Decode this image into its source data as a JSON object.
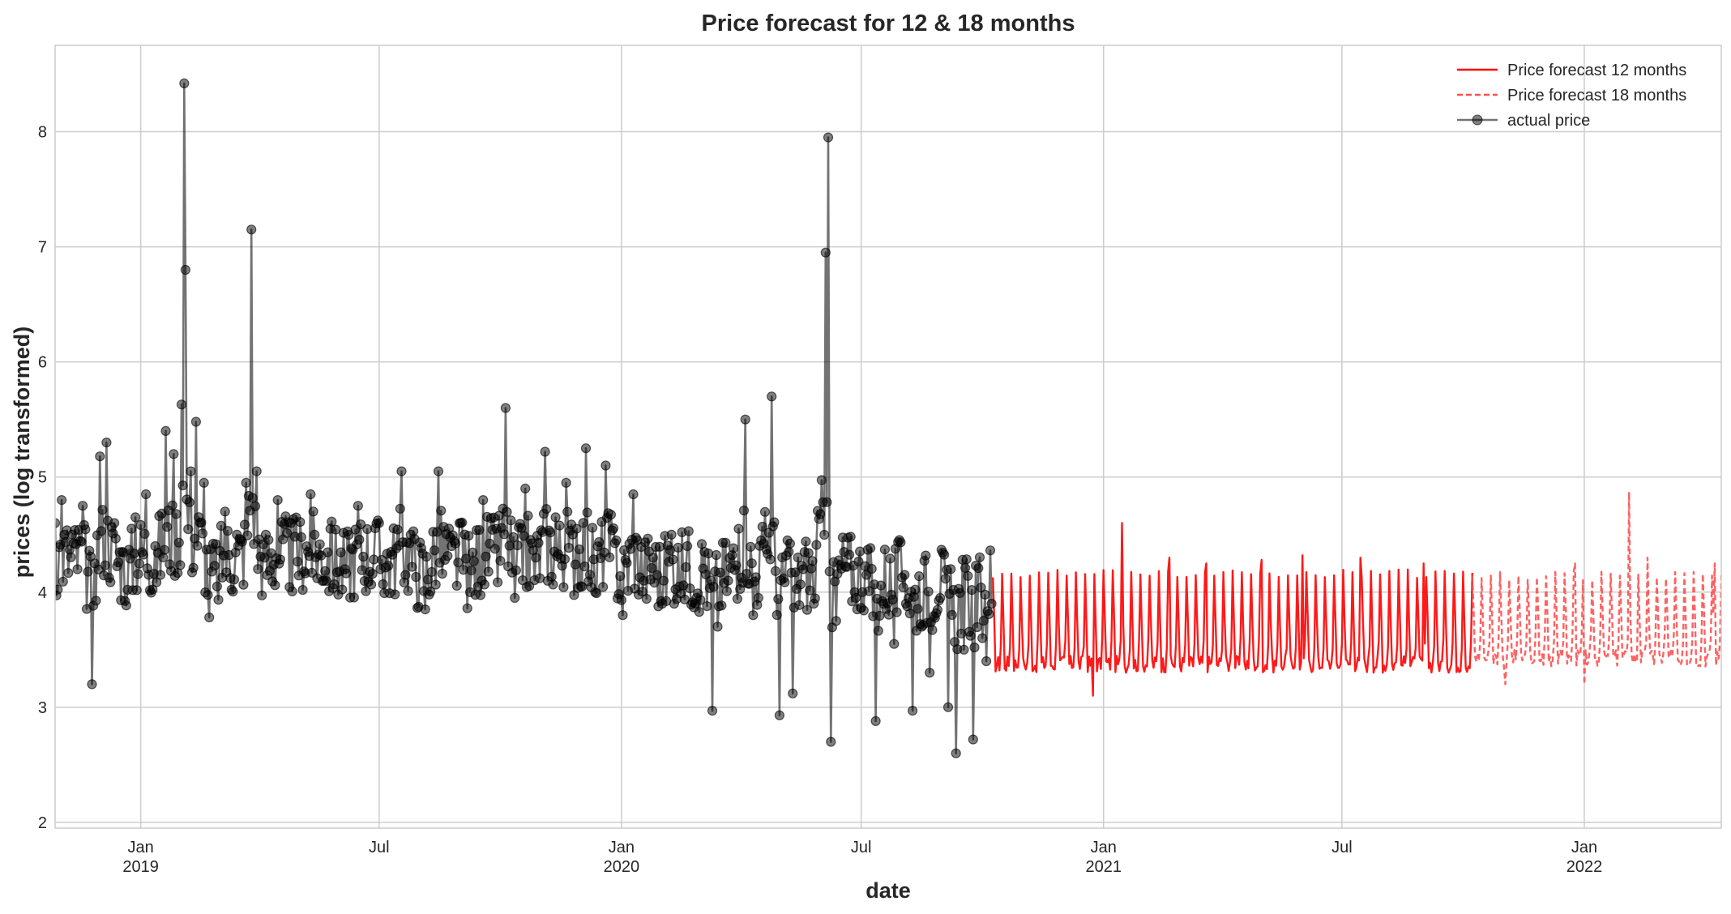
{
  "chart_data": {
    "type": "line",
    "title": "Price forecast for 12 & 18 months",
    "xlabel": "date",
    "ylabel": "prices (log transformed)",
    "xlim": [
      "2018-10-28",
      "2022-04-15"
    ],
    "ylim": [
      1.95,
      8.75
    ],
    "grid": true,
    "legend_position": "top-right",
    "y_ticks": [
      2,
      3,
      4,
      5,
      6,
      7,
      8
    ],
    "x_ticks": [
      {
        "date": "2019-01-01",
        "label": "Jan",
        "year": "2019"
      },
      {
        "date": "2019-07-01",
        "label": "Jul",
        "year": ""
      },
      {
        "date": "2020-01-01",
        "label": "Jan",
        "year": "2020"
      },
      {
        "date": "2020-07-01",
        "label": "Jul",
        "year": ""
      },
      {
        "date": "2021-01-01",
        "label": "Jan",
        "year": "2021"
      },
      {
        "date": "2021-07-01",
        "label": "Jul",
        "year": ""
      },
      {
        "date": "2022-01-01",
        "label": "Jan",
        "year": "2022"
      }
    ],
    "series": [
      {
        "name": "Price forecast 12 months",
        "color": "#ff0000",
        "style": "solid",
        "date_range": [
          "2020-10-09",
          "2021-10-08"
        ],
        "forecast": {
          "low": 3.35,
          "high": 4.2,
          "period_days": 7
        },
        "points": [
          [
            "2020-12-24",
            3.1
          ],
          [
            "2021-01-15",
            4.6
          ],
          [
            "2021-02-20",
            4.3
          ],
          [
            "2021-03-20",
            4.25
          ],
          [
            "2021-05-01",
            4.28
          ],
          [
            "2021-06-01",
            4.32
          ],
          [
            "2021-07-15",
            4.3
          ],
          [
            "2021-09-01",
            4.25
          ]
        ]
      },
      {
        "name": "Price forecast 18 months",
        "color": "#ff5050",
        "style": "dashed",
        "date_range": [
          "2021-10-08",
          "2022-04-15"
        ],
        "forecast": {
          "low": 3.4,
          "high": 4.18,
          "period_days": 7
        },
        "points": [
          [
            "2021-11-02",
            3.2
          ],
          [
            "2021-12-25",
            4.25
          ],
          [
            "2022-01-01",
            3.2
          ],
          [
            "2022-02-04",
            4.87
          ],
          [
            "2022-02-10",
            3.4
          ],
          [
            "2022-02-18",
            4.3
          ],
          [
            "2022-04-10",
            4.25
          ]
        ]
      },
      {
        "name": "actual price",
        "color": "#000000",
        "style": "solid-with-markers",
        "date_range": [
          "2018-10-28",
          "2020-10-08"
        ],
        "points": [
          [
            "2018-10-28",
            4.6
          ],
          [
            "2018-11-02",
            4.8
          ],
          [
            "2018-11-10",
            4.5
          ],
          [
            "2018-11-18",
            4.75
          ],
          [
            "2018-11-25",
            3.2
          ],
          [
            "2018-11-27",
            4.25
          ],
          [
            "2018-12-01",
            5.18
          ],
          [
            "2018-12-06",
            5.3
          ],
          [
            "2018-12-12",
            4.6
          ],
          [
            "2018-12-18",
            4.35
          ],
          [
            "2018-12-22",
            4.02
          ],
          [
            "2018-12-28",
            4.65
          ],
          [
            "2019-01-05",
            4.85
          ],
          [
            "2019-01-12",
            4.4
          ],
          [
            "2019-01-20",
            5.4
          ],
          [
            "2019-01-26",
            5.2
          ],
          [
            "2019-02-01",
            5.63
          ],
          [
            "2019-02-03",
            8.42
          ],
          [
            "2019-02-04",
            6.8
          ],
          [
            "2019-02-08",
            5.05
          ],
          [
            "2019-02-12",
            5.48
          ],
          [
            "2019-02-18",
            4.95
          ],
          [
            "2019-02-22",
            3.78
          ],
          [
            "2019-02-28",
            4.05
          ],
          [
            "2019-03-06",
            4.7
          ],
          [
            "2019-03-15",
            4.5
          ],
          [
            "2019-03-22",
            4.95
          ],
          [
            "2019-03-26",
            7.15
          ],
          [
            "2019-03-30",
            5.05
          ],
          [
            "2019-04-05",
            4.3
          ],
          [
            "2019-04-15",
            4.8
          ],
          [
            "2019-04-25",
            4.6
          ],
          [
            "2019-05-10",
            4.85
          ],
          [
            "2019-05-25",
            4.55
          ],
          [
            "2019-06-05",
            4.2
          ],
          [
            "2019-06-15",
            4.75
          ],
          [
            "2019-07-01",
            4.6
          ],
          [
            "2019-07-10",
            4.35
          ],
          [
            "2019-07-18",
            5.05
          ],
          [
            "2019-07-25",
            4.5
          ],
          [
            "2019-08-05",
            3.85
          ],
          [
            "2019-08-15",
            5.05
          ],
          [
            "2019-08-25",
            4.4
          ],
          [
            "2019-09-01",
            4.6
          ],
          [
            "2019-09-08",
            4.0
          ],
          [
            "2019-09-18",
            4.8
          ],
          [
            "2019-09-28",
            4.55
          ],
          [
            "2019-10-05",
            5.6
          ],
          [
            "2019-10-12",
            3.95
          ],
          [
            "2019-10-20",
            4.9
          ],
          [
            "2019-10-28",
            4.3
          ],
          [
            "2019-11-04",
            5.22
          ],
          [
            "2019-11-12",
            4.65
          ],
          [
            "2019-11-20",
            4.95
          ],
          [
            "2019-11-28",
            4.55
          ],
          [
            "2019-12-05",
            5.25
          ],
          [
            "2019-12-12",
            4.0
          ],
          [
            "2019-12-20",
            5.1
          ],
          [
            "2019-12-28",
            4.45
          ],
          [
            "2020-01-02",
            3.8
          ],
          [
            "2020-01-10",
            4.85
          ],
          [
            "2020-01-18",
            4.1
          ],
          [
            "2020-01-25",
            4.3
          ],
          [
            "2020-02-01",
            3.9
          ],
          [
            "2020-02-08",
            4.5
          ],
          [
            "2020-02-14",
            4.05
          ],
          [
            "2020-02-20",
            4.4
          ],
          [
            "2020-02-27",
            3.95
          ],
          [
            "2020-03-04",
            4.35
          ],
          [
            "2020-03-10",
            2.97
          ],
          [
            "2020-03-14",
            3.7
          ],
          [
            "2020-03-22",
            4.1
          ],
          [
            "2020-03-30",
            4.55
          ],
          [
            "2020-04-04",
            5.5
          ],
          [
            "2020-04-10",
            3.8
          ],
          [
            "2020-04-16",
            4.45
          ],
          [
            "2020-04-24",
            5.7
          ],
          [
            "2020-04-30",
            2.93
          ],
          [
            "2020-05-06",
            4.45
          ],
          [
            "2020-05-10",
            3.12
          ],
          [
            "2020-05-18",
            4.2
          ],
          [
            "2020-05-26",
            3.9
          ],
          [
            "2020-06-04",
            6.95
          ],
          [
            "2020-06-06",
            7.95
          ],
          [
            "2020-06-08",
            2.7
          ],
          [
            "2020-06-12",
            3.75
          ],
          [
            "2020-06-18",
            4.35
          ],
          [
            "2020-06-26",
            4.0
          ],
          [
            "2020-07-05",
            4.15
          ],
          [
            "2020-07-12",
            2.88
          ],
          [
            "2020-07-18",
            3.9
          ],
          [
            "2020-07-26",
            3.55
          ],
          [
            "2020-08-03",
            4.15
          ],
          [
            "2020-08-09",
            2.97
          ],
          [
            "2020-08-16",
            3.7
          ],
          [
            "2020-08-22",
            3.3
          ],
          [
            "2020-08-30",
            3.95
          ],
          [
            "2020-09-05",
            3.0
          ],
          [
            "2020-09-11",
            2.6
          ],
          [
            "2020-09-17",
            3.5
          ],
          [
            "2020-09-24",
            2.72
          ],
          [
            "2020-10-01",
            3.6
          ],
          [
            "2020-10-04",
            3.4
          ],
          [
            "2020-10-08",
            3.9
          ]
        ]
      }
    ]
  }
}
